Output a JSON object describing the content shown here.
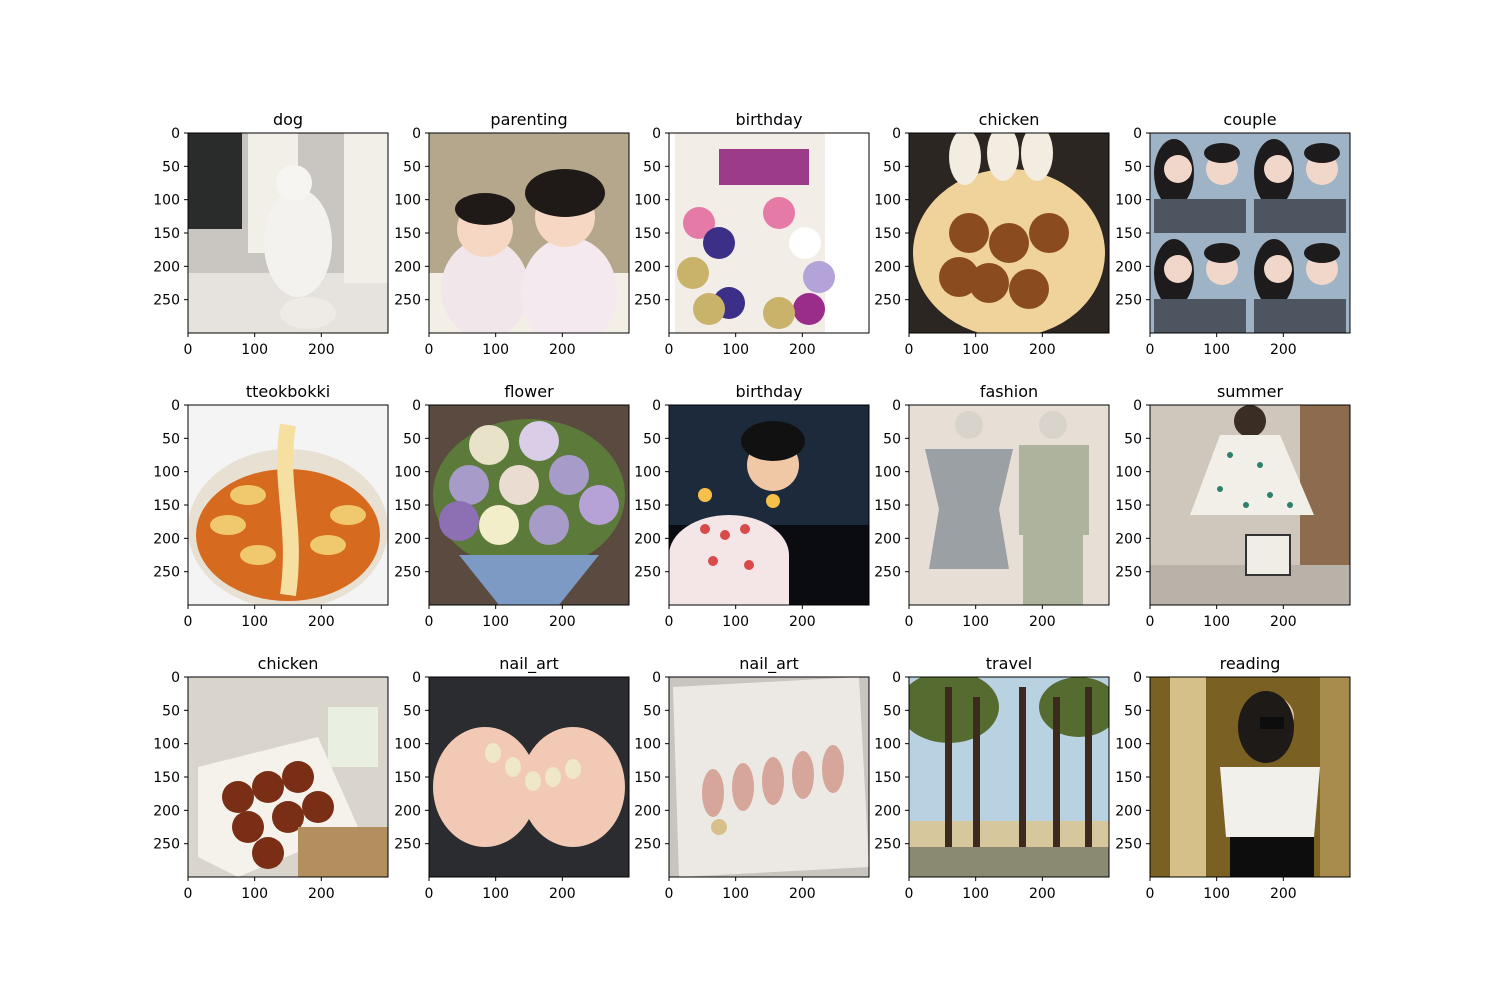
{
  "figure": {
    "tick_values": [
      0,
      50,
      100,
      150,
      200,
      250
    ],
    "x_tick_values": [
      0,
      100,
      200
    ],
    "image_range": [
      0,
      300
    ],
    "panels": [
      {
        "title": "dog",
        "scene": "dog",
        "palette": [
          "#c9c6c1",
          "#2a2c2b",
          "#f2efe8",
          "#8e8a84",
          "#e6e3de"
        ]
      },
      {
        "title": "parenting",
        "scene": "parenting",
        "palette": [
          "#b5a78c",
          "#f4efe6",
          "#f6d7c3",
          "#f1e6ea",
          "#1f1a18"
        ]
      },
      {
        "title": "birthday",
        "scene": "birthday",
        "palette": [
          "#f2ede6",
          "#9b3b8a",
          "#c9b36a",
          "#e67aa6",
          "#3b2f88"
        ]
      },
      {
        "title": "chicken",
        "scene": "chicken",
        "palette": [
          "#2b2622",
          "#d88a3a",
          "#f0d39a",
          "#8a4b1f",
          "#eae2d2"
        ]
      },
      {
        "title": "couple",
        "scene": "couple",
        "palette": [
          "#9fb3c7",
          "#1e1b1d",
          "#f1d7c9",
          "#4d5560",
          "#e5ddd4"
        ]
      },
      {
        "title": "tteokbokki",
        "scene": "tteokbokki",
        "palette": [
          "#f4f4f4",
          "#d66a1f",
          "#f0c86e",
          "#9c8b79",
          "#e8e0d3"
        ]
      },
      {
        "title": "flower",
        "scene": "flower",
        "palette": [
          "#5a4a3f",
          "#a79bc9",
          "#eadcd0",
          "#5c7a3a",
          "#7d9ac4"
        ]
      },
      {
        "title": "birthday",
        "scene": "birthday2",
        "palette": [
          "#1c2a3b",
          "#f4e6e6",
          "#d94a4a",
          "#f1c8a6",
          "#0b0b12"
        ]
      },
      {
        "title": "fashion",
        "scene": "fashion",
        "palette": [
          "#e7dfd6",
          "#9aa0a3",
          "#aeb39d",
          "#d8d4cc",
          "#6f6a64"
        ]
      },
      {
        "title": "summer",
        "scene": "summer",
        "palette": [
          "#cfc7bb",
          "#f1efe8",
          "#2f7f6f",
          "#8c6b4e",
          "#3a2d24"
        ]
      },
      {
        "title": "chicken",
        "scene": "chicken2",
        "palette": [
          "#d9d4cc",
          "#7a2e16",
          "#f5f2ec",
          "#b38e5f",
          "#3d2a20"
        ]
      },
      {
        "title": "nail_art",
        "scene": "nail1",
        "palette": [
          "#2a2c30",
          "#f1c9b5",
          "#efe7c8",
          "#d7a995",
          "#171819"
        ]
      },
      {
        "title": "nail_art",
        "scene": "nail2",
        "palette": [
          "#ece9e4",
          "#d7a69a",
          "#a48b7b",
          "#c0b6ab",
          "#8e7a6a"
        ]
      },
      {
        "title": "travel",
        "scene": "travel",
        "palette": [
          "#b9d2e2",
          "#3c2a1c",
          "#566b2f",
          "#d6c79c",
          "#8a8a72"
        ]
      },
      {
        "title": "reading",
        "scene": "reading",
        "palette": [
          "#7a6022",
          "#1d1a17",
          "#f2f0ea",
          "#d6c08a",
          "#0d0d0d"
        ]
      }
    ]
  }
}
